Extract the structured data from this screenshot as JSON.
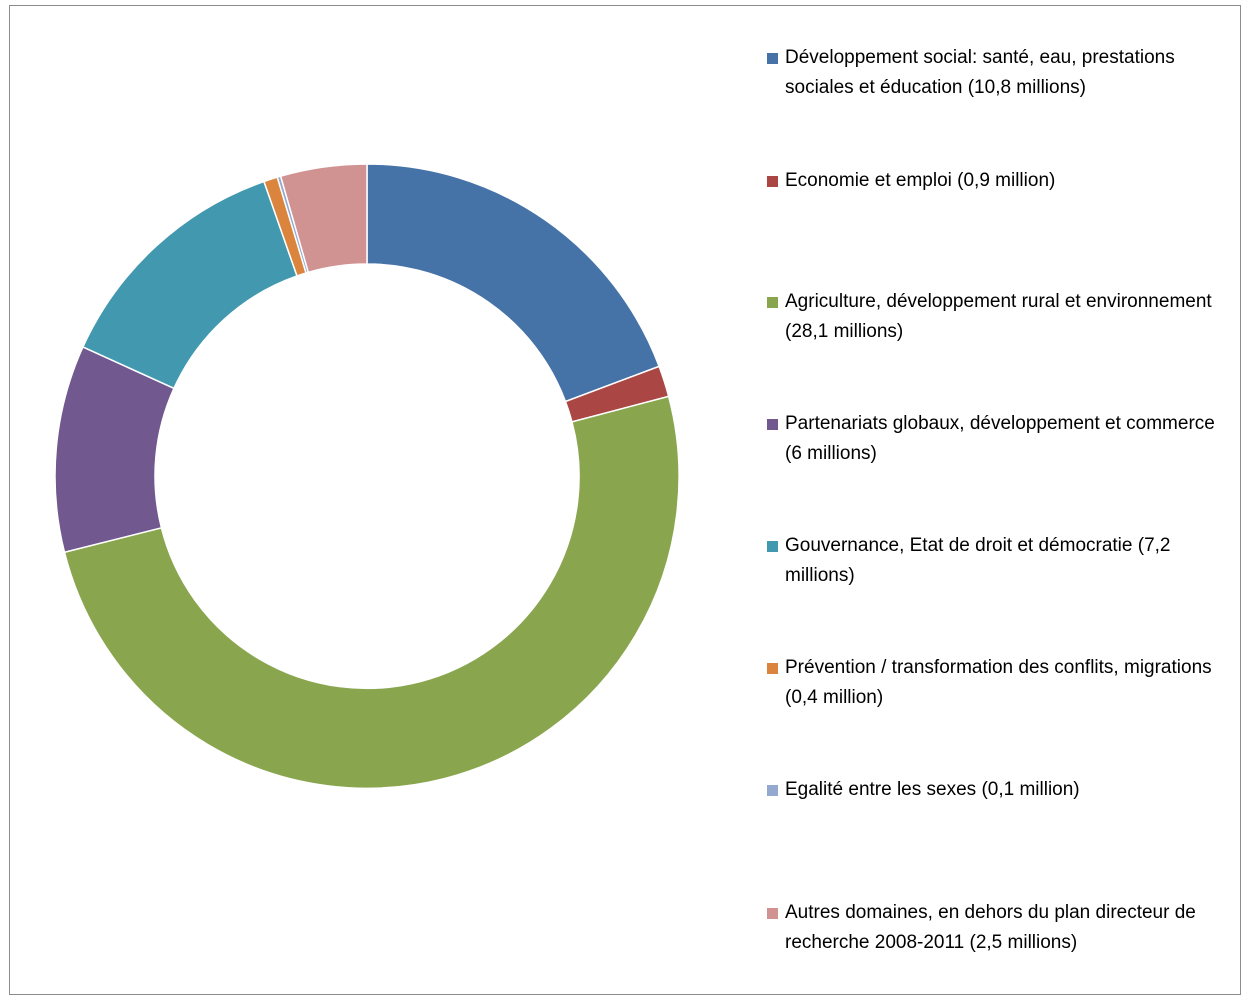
{
  "chart_data": {
    "type": "pie",
    "variant": "donut",
    "title": "",
    "legend_position": "right",
    "start_angle_deg": 0,
    "direction": "clockwise",
    "slices": [
      {
        "label": "Développement social: santé, eau, prestations sociales et éducation (10,8 millions)",
        "value": 10.8,
        "color": "#4572a7"
      },
      {
        "label": "Economie et emploi (0,9 million)",
        "value": 0.9,
        "color": "#aa4643"
      },
      {
        "label": "Agriculture, développement rural et environnement (28,1 millions)",
        "value": 28.1,
        "color": "#89a54e"
      },
      {
        "label": "Partenariats globaux, développement et commerce (6 millions)",
        "value": 6,
        "color": "#71588f"
      },
      {
        "label": "Gouvernance, Etat de droit et démocratie (7,2 millions)",
        "value": 7.2,
        "color": "#4198af"
      },
      {
        "label": "Prévention / transformation des conflits, migrations (0,4 million)",
        "value": 0.4,
        "color": "#db843d"
      },
      {
        "label": "Egalité entre les sexes (0,1 million)",
        "value": 0.1,
        "color": "#93a9cf"
      },
      {
        "label": "Autres domaines, en dehors du plan directeur de recherche 2008-2011 (2,5 millions)",
        "value": 2.5,
        "color": "#d19392"
      }
    ]
  }
}
